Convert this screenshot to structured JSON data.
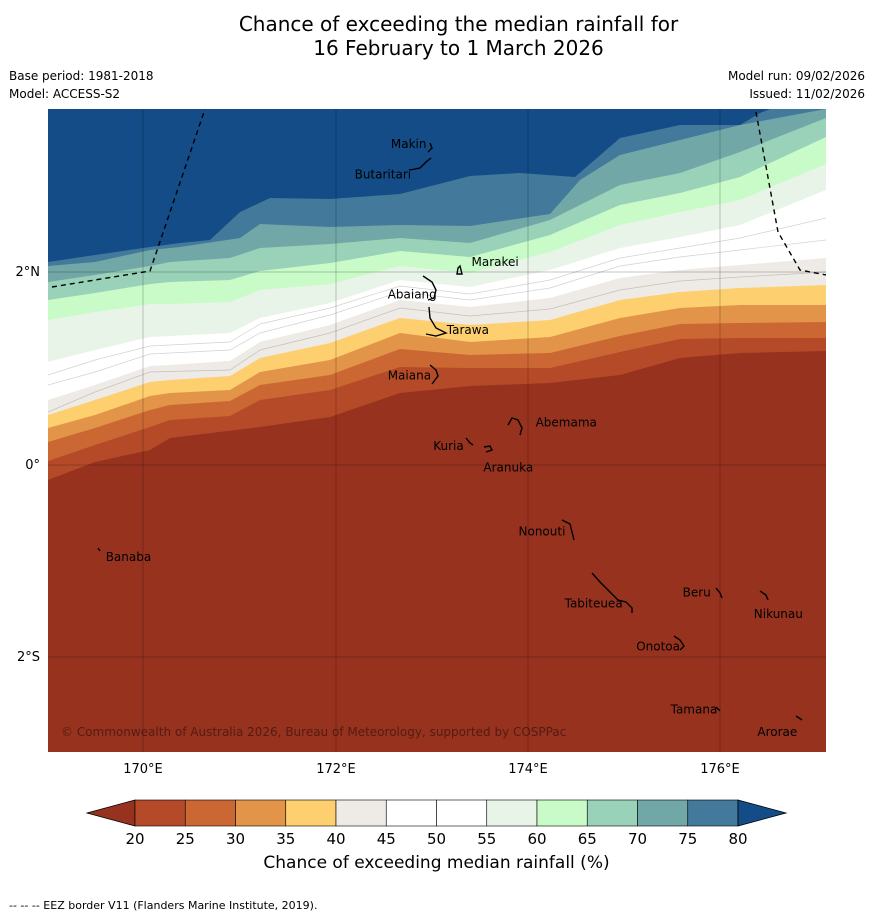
{
  "title": {
    "line1": "Chance of exceeding the median rainfall for",
    "line2": "16 February to 1 March 2026"
  },
  "meta_left": {
    "base_period": "Base period: 1981-2018",
    "model": "Model: ACCESS-S2"
  },
  "meta_right": {
    "model_run": "Model run: 09/02/2026",
    "issued": "Issued: 11/02/2026"
  },
  "map": {
    "lat_labels": [
      "2°N",
      "0°",
      "2°S"
    ],
    "lon_labels": [
      "170°E",
      "172°E",
      "174°E",
      "176°E"
    ],
    "copyright": "© Commonwealth of Australia 2026, Bureau of Meteorology, supported by COSPPac",
    "islands": [
      {
        "name": "Makin",
        "lon": 172.97,
        "lat": 3.37
      },
      {
        "name": "Butaritari",
        "lon": 172.78,
        "lat": 3.07
      },
      {
        "name": "Marakei",
        "lon": 173.33,
        "lat": 2.01
      },
      {
        "name": "Abaiang",
        "lon": 173.02,
        "lat": 1.82
      },
      {
        "name": "Tarawa",
        "lon": 173.0,
        "lat": 1.42
      },
      {
        "name": "Maiana",
        "lon": 173.02,
        "lat": 0.95
      },
      {
        "name": "Abemama",
        "lon": 173.85,
        "lat": 0.4
      },
      {
        "name": "Kuria",
        "lon": 173.41,
        "lat": 0.22
      },
      {
        "name": "Aranuka",
        "lon": 173.62,
        "lat": 0.17
      },
      {
        "name": "Nonouti",
        "lon": 174.4,
        "lat": -0.65
      },
      {
        "name": "Banaba",
        "lon": 169.54,
        "lat": -0.88
      },
      {
        "name": "Tabiteuea",
        "lon": 174.9,
        "lat": -1.35
      },
      {
        "name": "Beru",
        "lon": 175.98,
        "lat": -1.33
      },
      {
        "name": "Nikunau",
        "lon": 176.45,
        "lat": -1.36
      },
      {
        "name": "Onotoa",
        "lon": 175.56,
        "lat": -1.83
      },
      {
        "name": "Tamana",
        "lon": 175.98,
        "lat": -2.5
      },
      {
        "name": "Arorae",
        "lon": 176.82,
        "lat": -2.64
      }
    ]
  },
  "colorbar": {
    "ticks": [
      "20",
      "25",
      "30",
      "35",
      "40",
      "45",
      "50",
      "55",
      "60",
      "65",
      "70",
      "75",
      "80"
    ],
    "colors": [
      "#97321f",
      "#b54a28",
      "#cb6733",
      "#e29449",
      "#fdcf6f",
      "#eeeae5",
      "#ffffff",
      "#ffffff",
      "#e8f4e8",
      "#c8fbc8",
      "#99d2b9",
      "#72a7a8",
      "#43799a",
      "#134c86"
    ],
    "label": "Chance of exceeding median rainfall (%)"
  },
  "footnote": "--  --  -- EEZ border V11 (Flanders Marine Institute, 2019)."
}
